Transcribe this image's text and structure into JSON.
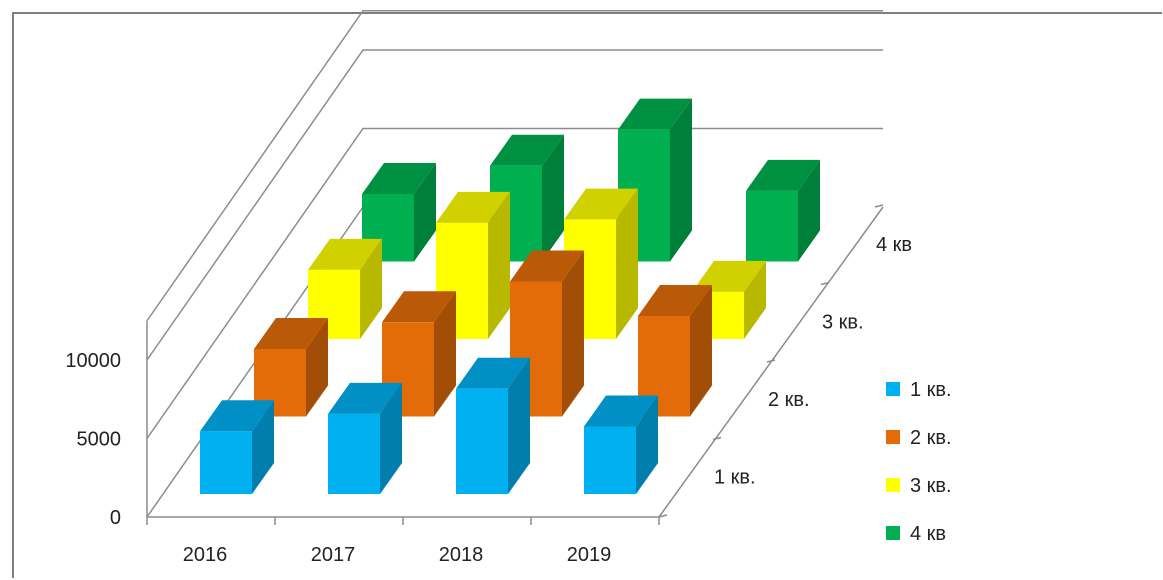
{
  "chart_data": {
    "type": "bar",
    "subtype": "3d-column",
    "title": "",
    "categories": [
      "2016",
      "2017",
      "2018",
      "2019"
    ],
    "y_ticks": [
      "0",
      "5000",
      "10000"
    ],
    "ylim": [
      0,
      10000
    ],
    "series": [
      {
        "name": "1 кв.",
        "depth_label": "1 кв.",
        "color": "#00b0f0",
        "values": [
          4000,
          5100,
          6700,
          4300
        ]
      },
      {
        "name": "2 кв.",
        "depth_label": "2 кв.",
        "color": "#e36c09",
        "values": [
          4300,
          6000,
          8600,
          6400
        ]
      },
      {
        "name": "3 кв.",
        "depth_label": "3 кв.",
        "color": "#ffff00",
        "values": [
          4400,
          7400,
          7600,
          3000
        ]
      },
      {
        "name": "4 кв",
        "depth_label": "4 кв",
        "color": "#00b050",
        "values": [
          4300,
          6100,
          8400,
          4500
        ]
      }
    ],
    "legend_position": "right",
    "grid": true
  }
}
